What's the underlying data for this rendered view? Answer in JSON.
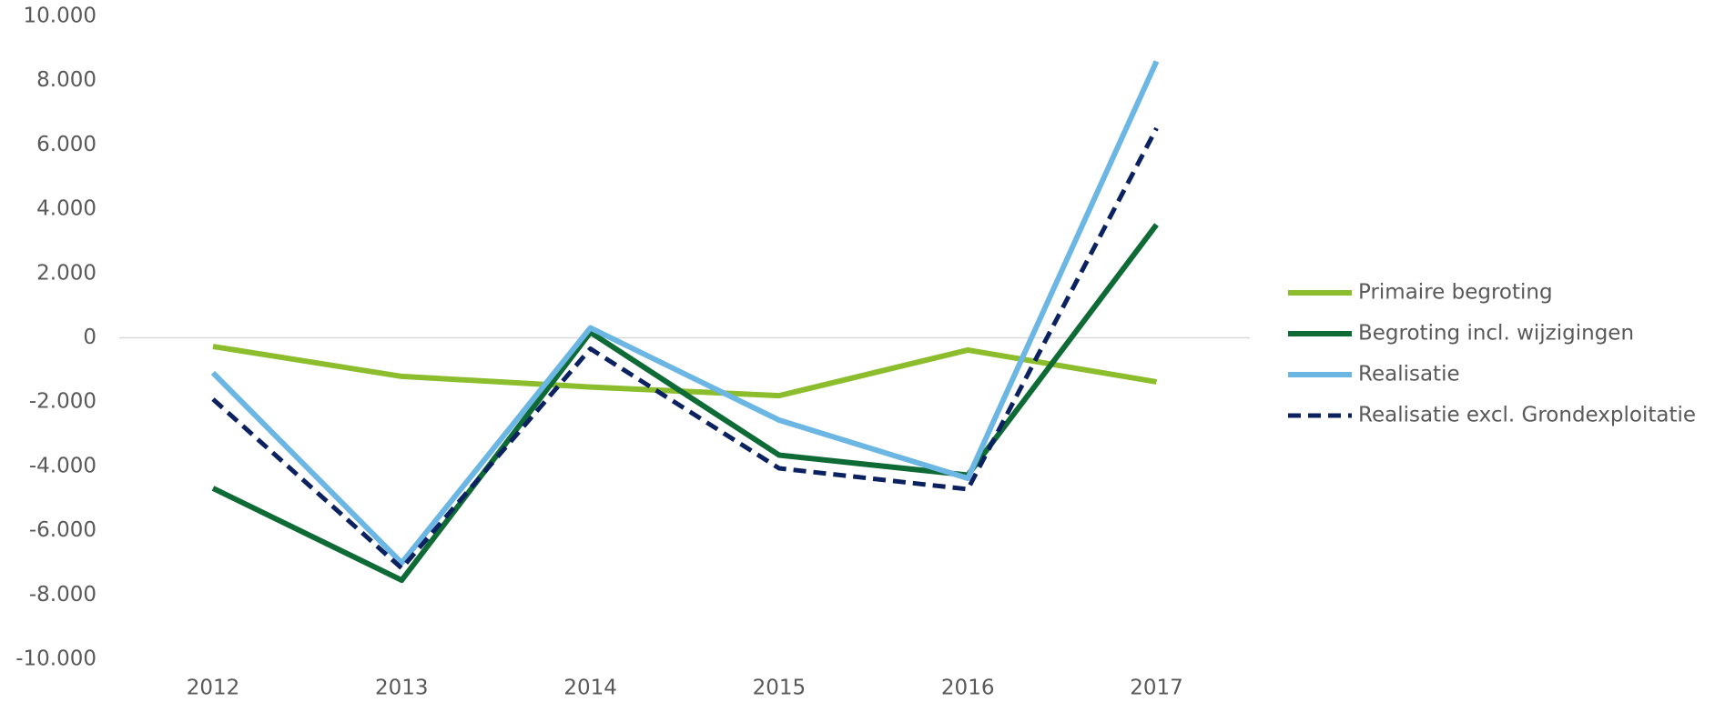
{
  "chart_data": {
    "type": "line",
    "categories": [
      "2012",
      "2013",
      "2014",
      "2015",
      "2016",
      "2017"
    ],
    "series": [
      {
        "name": "Primaire begroting",
        "color": "#8cbd2c",
        "dashed": false,
        "values": [
          -270,
          -1200,
          -1530,
          -1800,
          -380,
          -1370
        ]
      },
      {
        "name": "Begroting incl. wijzigingen",
        "color": "#0e6b35",
        "dashed": false,
        "values": [
          -4680,
          -7540,
          170,
          -3650,
          -4270,
          3520
        ]
      },
      {
        "name": "Realisatie",
        "color": "#6cb6e4",
        "dashed": false,
        "values": [
          -1090,
          -7000,
          310,
          -2560,
          -4370,
          8600
        ]
      },
      {
        "name": "Realisatie excl. Grondexploitatie",
        "color": "#0c2260",
        "dashed": true,
        "values": [
          -1910,
          -7170,
          -340,
          -4060,
          -4710,
          6520
        ]
      }
    ],
    "ylim": [
      -10000,
      10000
    ],
    "yticks": [
      {
        "value": -10000,
        "label": "-10.000"
      },
      {
        "value": -8000,
        "label": "-8.000"
      },
      {
        "value": -6000,
        "label": "-6.000"
      },
      {
        "value": -4000,
        "label": "-4.000"
      },
      {
        "value": -2000,
        "label": "-2.000"
      },
      0,
      {
        "value": 2000,
        "label": "2.000"
      },
      {
        "value": 4000,
        "label": "4.000"
      },
      {
        "value": 6000,
        "label": "6.000"
      },
      {
        "value": 8000,
        "label": "8.000"
      },
      {
        "value": 10000,
        "label": "10.000"
      }
    ],
    "zero_line": true,
    "legend": "right"
  }
}
